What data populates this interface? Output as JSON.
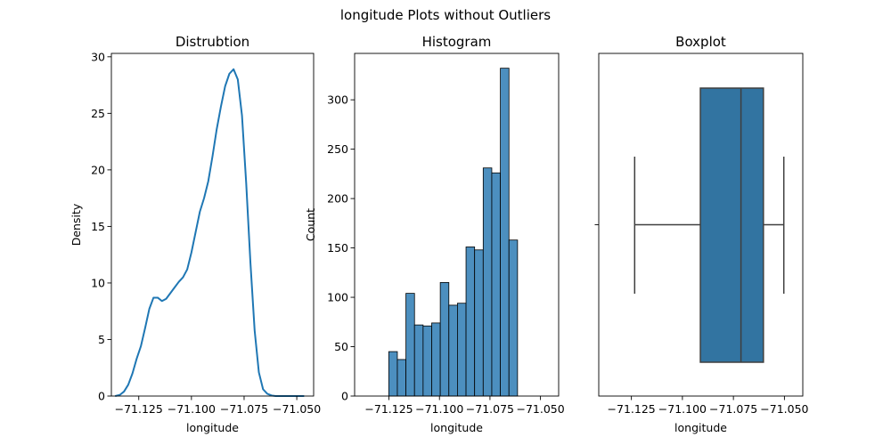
{
  "figure": {
    "suptitle": "longitude Plots without Outliers"
  },
  "chart_data": [
    {
      "type": "line",
      "title": "Distrubtion",
      "xlabel": "longitude",
      "ylabel": "Density",
      "xlim": [
        -71.138,
        -71.042
      ],
      "ylim": [
        0,
        30.3
      ],
      "x_ticks": [
        -71.125,
        -71.1,
        -71.075,
        -71.05
      ],
      "x_tick_labels": [
        "−71.125",
        "−71.100",
        "−71.075",
        "−71.050"
      ],
      "y_ticks": [
        0,
        5,
        10,
        15,
        20,
        25,
        30
      ],
      "y_tick_labels": [
        "0",
        "5",
        "10",
        "15",
        "20",
        "25",
        "30"
      ],
      "color": "#1f77b4",
      "series": [
        {
          "x": [
            -71.1362,
            -71.134,
            -71.132,
            -71.13,
            -71.128,
            -71.126,
            -71.124,
            -71.122,
            -71.12,
            -71.118,
            -71.116,
            -71.114,
            -71.112,
            -71.11,
            -71.108,
            -71.106,
            -71.104,
            -71.102,
            -71.1,
            -71.098,
            -71.096,
            -71.094,
            -71.092,
            -71.09,
            -71.088,
            -71.086,
            -71.084,
            -71.082,
            -71.08,
            -71.078,
            -71.076,
            -71.074,
            -71.072,
            -71.07,
            -71.068,
            -71.066,
            -71.064,
            -71.062,
            -71.06,
            -71.058,
            -71.056,
            -71.054,
            -71.052,
            -71.05,
            -71.048,
            -71.0465
          ],
          "y": [
            0.0,
            0.1,
            0.4,
            1.0,
            2.0,
            3.3,
            4.4,
            6.0,
            7.7,
            8.7,
            8.7,
            8.4,
            8.6,
            9.1,
            9.6,
            10.1,
            10.5,
            11.2,
            12.7,
            14.5,
            16.3,
            17.5,
            19.0,
            21.2,
            23.6,
            25.6,
            27.4,
            28.5,
            28.9,
            28.0,
            24.8,
            18.8,
            11.8,
            5.8,
            2.1,
            0.6,
            0.2,
            0.05,
            0.0,
            0.0,
            0.0,
            0.0,
            0.0,
            0.0,
            0.0,
            0.0
          ]
        }
      ]
    },
    {
      "type": "bar",
      "title": "Histogram",
      "xlabel": "longitude",
      "ylabel": "Count",
      "xlim": [
        -71.142,
        -71.041
      ],
      "ylim": [
        0,
        347
      ],
      "x_ticks": [
        -71.125,
        -71.1,
        -71.075,
        -71.05
      ],
      "x_tick_labels": [
        "−71.125",
        "−71.100",
        "−71.075",
        "−71.050"
      ],
      "y_ticks": [
        0,
        50,
        100,
        150,
        200,
        250,
        300
      ],
      "y_tick_labels": [
        "0",
        "50",
        "100",
        "150",
        "200",
        "250",
        "300"
      ],
      "bin_start": -71.1251,
      "bin_width": 0.00425,
      "values": [
        45,
        37,
        104,
        72,
        71,
        74,
        115,
        92,
        94,
        151,
        148,
        231,
        226,
        332,
        158
      ],
      "color": "#4c8fbf"
    },
    {
      "type": "box",
      "title": "Boxplot",
      "xlabel": "longitude",
      "xlim": [
        -71.141,
        -71.041
      ],
      "x_ticks": [
        -71.125,
        -71.1,
        -71.075,
        -71.05
      ],
      "x_tick_labels": [
        "−71.125",
        "−71.100",
        "−71.075",
        "−71.050"
      ],
      "whisker_low": -71.1234,
      "q1": -71.0912,
      "median": -71.0713,
      "q3": -71.0603,
      "whisker_high": -71.0503,
      "color": "#3274a1"
    }
  ]
}
